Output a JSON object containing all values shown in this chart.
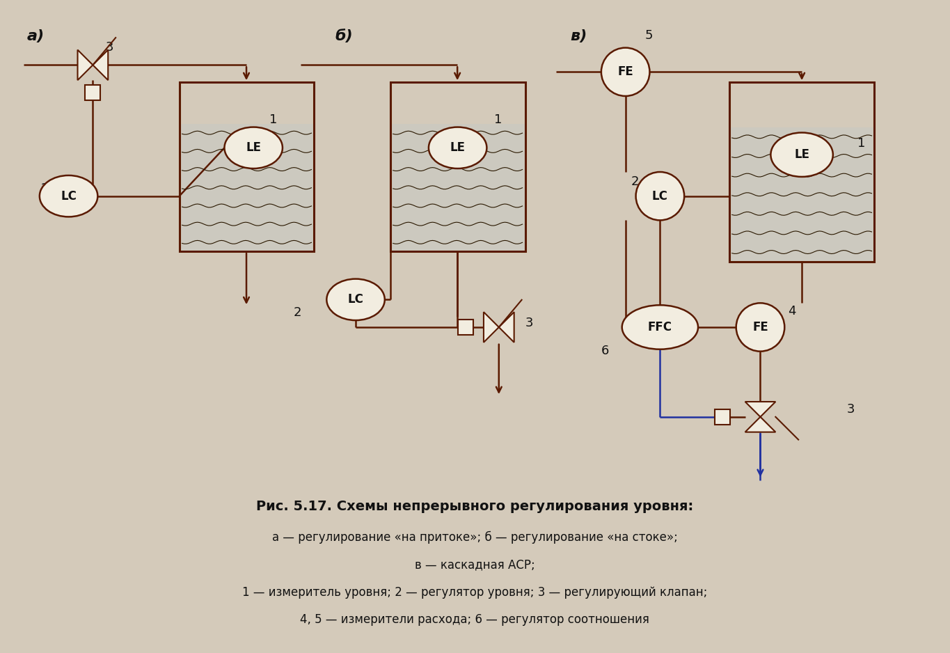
{
  "bg_color": "#d4caba",
  "line_color": "#5a1a00",
  "blue_line": "#2030a0",
  "text_color": "#111111",
  "title_bold": "Рис. 5.17. Схемы непрерывного регулирования уровня:",
  "caption_lines": [
    "а — регулирование «на притоке»; б — регулирование «на стоке»;",
    "в — каскадная АСР;",
    "1 — измеритель уровня; 2 — регулятор уровня; 3 — регулирующий клапан;",
    "4, 5 — измерители расхода; 6 — регулятор соотношения"
  ],
  "label_a": "а)",
  "label_b": "б)",
  "label_v": "в)",
  "instr_face": "#f2ede0",
  "water_wave_color": "#2a1800"
}
